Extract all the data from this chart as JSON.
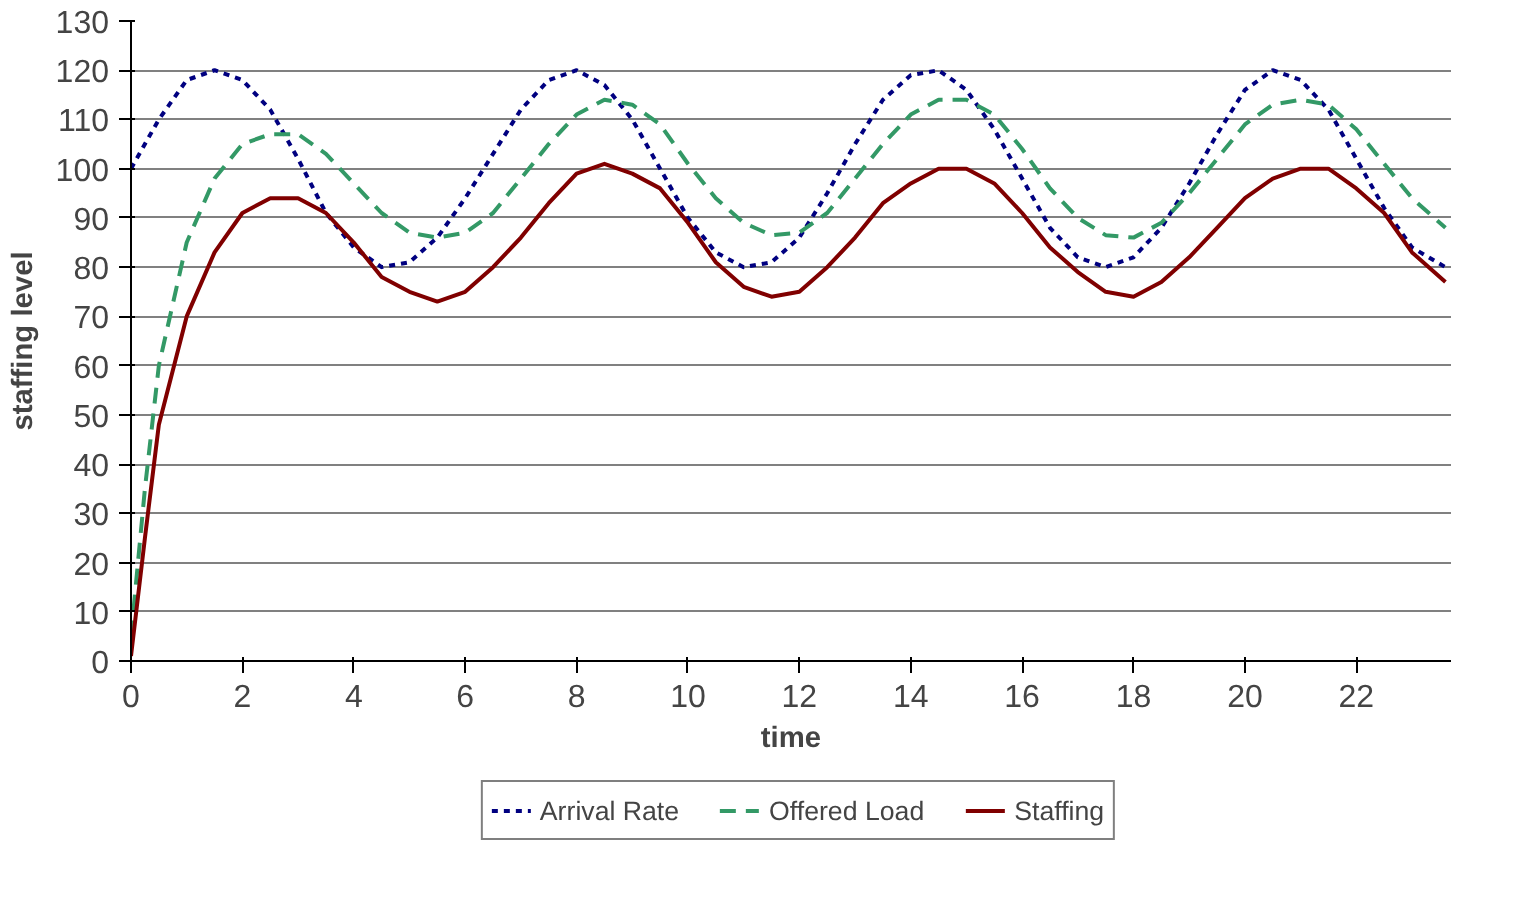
{
  "chart_data": {
    "type": "line",
    "xlabel": "time",
    "ylabel": "staffing level",
    "x": [
      0,
      0.25,
      0.5,
      1,
      1.5,
      2,
      2.5,
      3,
      3.5,
      4,
      4.5,
      5,
      5.5,
      6,
      6.5,
      7,
      7.5,
      8,
      8.5,
      9,
      9.5,
      10,
      10.5,
      11,
      11.5,
      12,
      12.5,
      13,
      13.5,
      14,
      14.5,
      15,
      15.5,
      16,
      16.5,
      17,
      17.5,
      18,
      18.5,
      19,
      19.5,
      20,
      20.5,
      21,
      21.5,
      22,
      22.5,
      23,
      23.6
    ],
    "series": [
      {
        "name": "Arrival Rate",
        "color": "#000080",
        "line_style": "dotted",
        "values": [
          100,
          105,
          110,
          118,
          120,
          118,
          112,
          102,
          91,
          84,
          80,
          81,
          86,
          94,
          103,
          112,
          118,
          120,
          117,
          110,
          100,
          90,
          83,
          80,
          81,
          86,
          95,
          105,
          114,
          119,
          120,
          116,
          108,
          98,
          88,
          82,
          80,
          82,
          88,
          97,
          107,
          116,
          120,
          118,
          112,
          102,
          92,
          84,
          80
        ]
      },
      {
        "name": "Offered Load",
        "color": "#339966",
        "line_style": "dashed",
        "values": [
          5,
          35,
          60,
          85,
          98,
          105,
          107,
          107,
          103,
          97,
          91,
          87,
          86,
          87,
          91,
          98,
          105,
          111,
          114,
          113,
          109,
          101,
          94,
          89,
          86.5,
          87,
          91,
          98,
          105,
          111,
          114,
          114,
          111,
          104,
          96,
          90,
          86.5,
          86,
          89,
          95,
          102,
          109,
          113,
          114,
          113,
          108,
          101,
          94,
          88
        ]
      },
      {
        "name": "Staffing",
        "color": "#800000",
        "line_style": "solid",
        "values": [
          1,
          25,
          48,
          70,
          83,
          91,
          94,
          94,
          91,
          85,
          78,
          75,
          73,
          75,
          80,
          86,
          93,
          99,
          101,
          99,
          96,
          89,
          81,
          76,
          74,
          75,
          80,
          86,
          93,
          97,
          100,
          100,
          97,
          91,
          84,
          79,
          75,
          74,
          77,
          82,
          88,
          94,
          98,
          100,
          100,
          96,
          91,
          83,
          77
        ]
      }
    ],
    "xlim": [
      0,
      23.7
    ],
    "ylim": [
      0,
      130
    ],
    "xticks": [
      0,
      2,
      4,
      6,
      8,
      10,
      12,
      14,
      16,
      18,
      20,
      22
    ],
    "yticks": [
      0,
      10,
      20,
      30,
      40,
      50,
      60,
      70,
      80,
      90,
      100,
      110,
      120,
      130
    ],
    "grid": "y",
    "legend": "bottom",
    "marker": "none"
  }
}
